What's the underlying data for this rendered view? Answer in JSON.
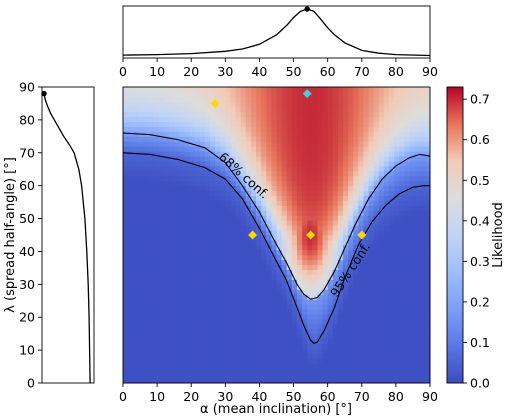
{
  "chart_data": [
    {
      "type": "heatmap",
      "role": "main",
      "xlabel": "α (mean inclination) [°]",
      "ylabel": "λ (spread half-angle) [°]",
      "xlim": [
        0,
        90
      ],
      "ylim": [
        0,
        90
      ],
      "xticks": [
        "0",
        "10",
        "20",
        "30",
        "40",
        "50",
        "60",
        "70",
        "80",
        "90"
      ],
      "yticks": [
        "0",
        "10",
        "20",
        "30",
        "40",
        "50",
        "60",
        "70",
        "80",
        "90"
      ],
      "colormap": "coolwarm",
      "colorbar": {
        "label": "Likelihood",
        "range": [
          0,
          0.73
        ],
        "ticks": [
          "0.0",
          "0.1",
          "0.2",
          "0.3",
          "0.4",
          "0.5",
          "0.6",
          "0.7"
        ]
      },
      "contours": [
        {
          "label": "68% conf.",
          "points": [
            [
              0,
              76
            ],
            [
              8,
              75.5
            ],
            [
              16,
              74
            ],
            [
              24,
              71.5
            ],
            [
              30,
              67
            ],
            [
              35,
              60
            ],
            [
              40,
              52
            ],
            [
              44,
              44
            ],
            [
              48,
              36.5
            ],
            [
              51,
              30
            ],
            [
              53,
              27
            ],
            [
              55,
              25.5
            ],
            [
              57,
              26
            ],
            [
              59,
              28.5
            ],
            [
              62,
              34
            ],
            [
              65,
              41
            ],
            [
              68,
              48
            ],
            [
              72,
              56
            ],
            [
              76,
              62
            ],
            [
              80,
              66
            ],
            [
              84,
              68.5
            ],
            [
              87,
              69.5
            ],
            [
              90,
              69
            ]
          ]
        },
        {
          "label": "95% conf.",
          "points": [
            [
              0,
              70
            ],
            [
              8,
              69.5
            ],
            [
              16,
              68
            ],
            [
              24,
              65.5
            ],
            [
              30,
              62
            ],
            [
              35,
              56
            ],
            [
              40,
              47
            ],
            [
              44,
              39
            ],
            [
              48,
              31
            ],
            [
              51,
              23
            ],
            [
              53,
              17.5
            ],
            [
              55,
              13
            ],
            [
              56,
              12
            ],
            [
              57,
              12.5
            ],
            [
              59,
              16
            ],
            [
              62,
              23
            ],
            [
              65,
              32
            ],
            [
              69,
              42
            ],
            [
              73,
              49
            ],
            [
              77,
              54
            ],
            [
              81,
              57.5
            ],
            [
              85,
              59.5
            ],
            [
              88,
              60
            ],
            [
              90,
              60
            ]
          ]
        }
      ],
      "markers": [
        {
          "x": 27,
          "y": 85,
          "color": "#ffd700"
        },
        {
          "x": 54,
          "y": 88,
          "color": "#40d0e0"
        },
        {
          "x": 38,
          "y": 45,
          "color": "#ffd700"
        },
        {
          "x": 55,
          "y": 45,
          "color": "#ffd700"
        },
        {
          "x": 70,
          "y": 45,
          "color": "#ffd700"
        }
      ]
    },
    {
      "type": "line",
      "role": "top-marginal",
      "xlim": [
        0,
        90
      ],
      "xticks": [
        "0",
        "10",
        "20",
        "30",
        "40",
        "50",
        "60",
        "70",
        "80",
        "90"
      ],
      "x": [
        0,
        10,
        20,
        30,
        35,
        40,
        45,
        48,
        50,
        52,
        54,
        56,
        58,
        60,
        62,
        65,
        70,
        75,
        80,
        90
      ],
      "values": [
        0.02,
        0.03,
        0.05,
        0.1,
        0.15,
        0.25,
        0.45,
        0.65,
        0.82,
        0.95,
        1.0,
        0.95,
        0.78,
        0.6,
        0.45,
        0.28,
        0.12,
        0.06,
        0.03,
        0.01
      ],
      "peak": {
        "x": 54,
        "y": 1.0
      }
    },
    {
      "type": "line",
      "role": "left-marginal",
      "ylim": [
        0,
        90
      ],
      "yticks": [
        "0",
        "10",
        "20",
        "30",
        "40",
        "50",
        "60",
        "70",
        "80",
        "90"
      ],
      "y": [
        0,
        10,
        20,
        30,
        40,
        50,
        60,
        65,
        70,
        72,
        75,
        78,
        80,
        82,
        84,
        86,
        88
      ],
      "values": [
        0.98,
        0.97,
        0.96,
        0.94,
        0.91,
        0.87,
        0.8,
        0.74,
        0.64,
        0.56,
        0.42,
        0.3,
        0.22,
        0.14,
        0.08,
        0.03,
        0.0
      ],
      "peak": {
        "y": 88,
        "x": 0.0
      }
    }
  ]
}
